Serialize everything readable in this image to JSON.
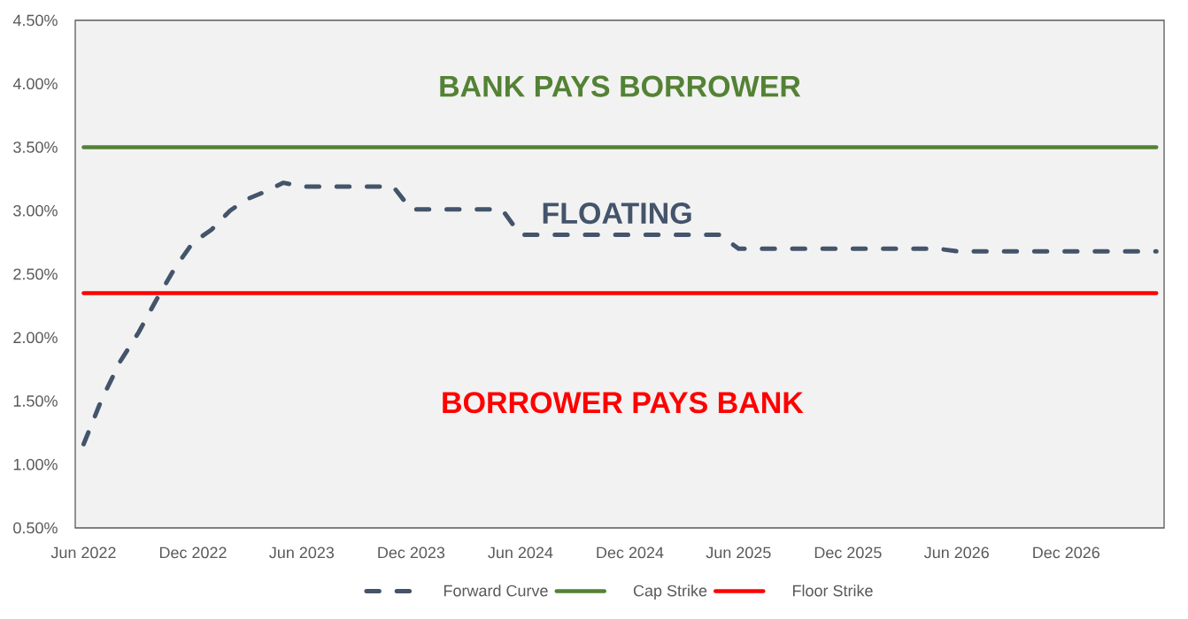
{
  "chart_data": {
    "type": "line",
    "x": [
      "2022-06",
      "2022-07",
      "2022-08",
      "2022-09",
      "2022-10",
      "2022-11",
      "2022-12",
      "2023-01",
      "2023-02",
      "2023-03",
      "2023-04",
      "2023-05",
      "2023-06",
      "2023-07",
      "2023-08",
      "2023-09",
      "2023-10",
      "2023-11",
      "2023-12",
      "2024-01",
      "2024-02",
      "2024-03",
      "2024-04",
      "2024-05",
      "2024-06",
      "2024-07",
      "2024-08",
      "2024-09",
      "2024-10",
      "2024-11",
      "2024-12",
      "2025-01",
      "2025-02",
      "2025-03",
      "2025-04",
      "2025-05",
      "2025-06",
      "2025-07",
      "2025-08",
      "2025-09",
      "2025-10",
      "2025-11",
      "2025-12",
      "2026-01",
      "2026-02",
      "2026-03",
      "2026-04",
      "2026-05",
      "2026-06",
      "2026-07",
      "2026-08",
      "2026-09",
      "2026-10",
      "2026-11",
      "2026-12",
      "2027-01",
      "2027-02",
      "2027-03",
      "2027-04",
      "2027-05"
    ],
    "xlim": [
      "2022-05-18",
      "2027-05-14"
    ],
    "xticks": [
      {
        "value": "2022-06",
        "label": "Jun 2022"
      },
      {
        "value": "2022-12",
        "label": "Dec 2022"
      },
      {
        "value": "2023-06",
        "label": "Jun 2023"
      },
      {
        "value": "2023-12",
        "label": "Dec 2023"
      },
      {
        "value": "2024-06",
        "label": "Jun 2024"
      },
      {
        "value": "2024-12",
        "label": "Dec 2024"
      },
      {
        "value": "2025-06",
        "label": "Jun 2025"
      },
      {
        "value": "2025-12",
        "label": "Dec 2025"
      },
      {
        "value": "2026-06",
        "label": "Jun 2026"
      },
      {
        "value": "2026-12",
        "label": "Dec 2026"
      }
    ],
    "ylim": [
      0.5,
      4.5
    ],
    "yticks": [
      {
        "value": 0.5,
        "label": "0.50%"
      },
      {
        "value": 1.0,
        "label": "1.00%"
      },
      {
        "value": 1.5,
        "label": "1.50%"
      },
      {
        "value": 2.0,
        "label": "2.00%"
      },
      {
        "value": 2.5,
        "label": "2.50%"
      },
      {
        "value": 3.0,
        "label": "3.00%"
      },
      {
        "value": 3.5,
        "label": "3.50%"
      },
      {
        "value": 4.0,
        "label": "4.00%"
      },
      {
        "value": 4.5,
        "label": "4.50%"
      }
    ],
    "series": [
      {
        "name": "Forward Curve",
        "color": "#44546a",
        "line_style": "dashed",
        "values": [
          1.16,
          1.51,
          1.81,
          2.04,
          2.3,
          2.55,
          2.75,
          2.85,
          3.0,
          3.09,
          3.15,
          3.22,
          3.19,
          3.19,
          3.19,
          3.19,
          3.19,
          3.19,
          3.01,
          3.01,
          3.01,
          3.01,
          3.01,
          3.01,
          2.81,
          2.81,
          2.81,
          2.81,
          2.81,
          2.81,
          2.81,
          2.81,
          2.81,
          2.81,
          2.81,
          2.81,
          2.7,
          2.7,
          2.7,
          2.7,
          2.7,
          2.7,
          2.7,
          2.7,
          2.7,
          2.7,
          2.7,
          2.7,
          2.68,
          2.68,
          2.68,
          2.68,
          2.68,
          2.68,
          2.68,
          2.68,
          2.68,
          2.68,
          2.68,
          2.68
        ]
      },
      {
        "name": "Cap Strike",
        "color": "#548235",
        "line_style": "solid",
        "x": [
          "2022-06",
          "2027-05"
        ],
        "values": [
          3.5,
          3.5
        ]
      },
      {
        "name": "Floor Strike",
        "color": "#ff0000",
        "line_style": "solid",
        "x": [
          "2022-06",
          "2027-05"
        ],
        "values": [
          2.35,
          2.35
        ]
      }
    ],
    "annotations": [
      "BANK PAYS BORROWER",
      "FLOATING",
      "BORROWER PAYS BANK"
    ],
    "legend": "bottom"
  }
}
